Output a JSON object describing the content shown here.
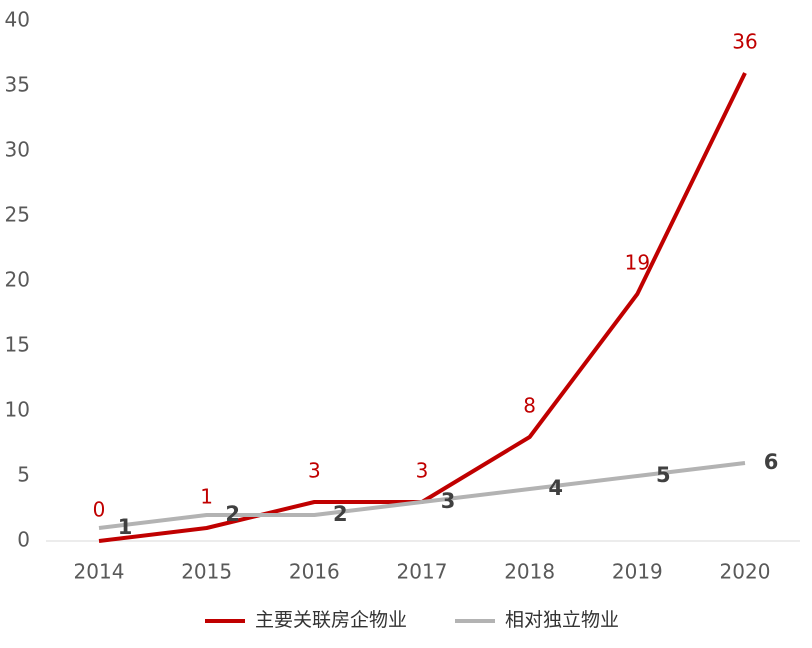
{
  "chart_data": {
    "type": "line",
    "categories": [
      "2014",
      "2015",
      "2016",
      "2017",
      "2018",
      "2019",
      "2020"
    ],
    "series": [
      {
        "name": "主要关联房企物业",
        "color": "#c00000",
        "values": [
          0,
          1,
          3,
          3,
          8,
          19,
          36
        ]
      },
      {
        "name": "相对独立物业",
        "color": "#b3b3b3",
        "values": [
          1,
          2,
          2,
          3,
          4,
          5,
          6
        ]
      }
    ],
    "ylim": [
      0,
      40
    ],
    "yticks": [
      0,
      5,
      10,
      15,
      20,
      25,
      30,
      35,
      40
    ],
    "grid": false,
    "legend": "bottom"
  }
}
